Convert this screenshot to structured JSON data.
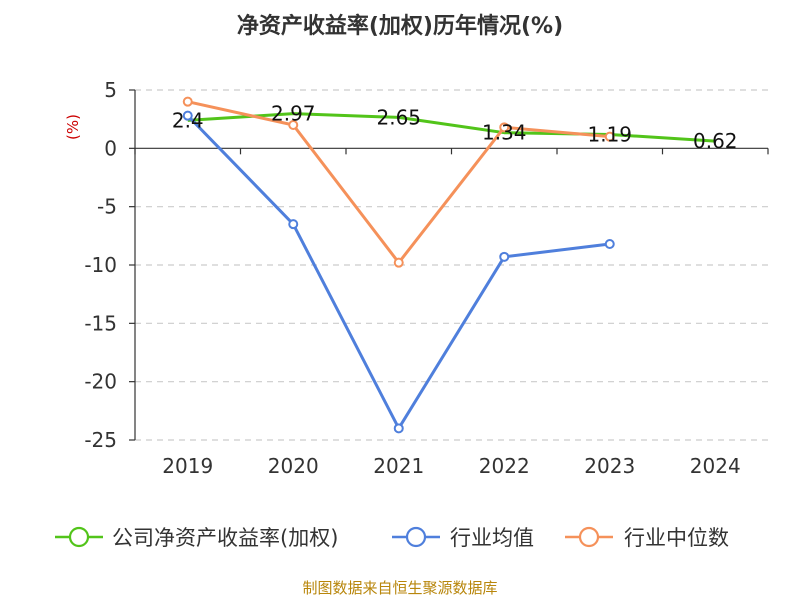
{
  "chart_data": {
    "type": "line",
    "title": "净资产收益率(加权)历年情况(%)",
    "ylabel": "(%)",
    "x": [
      "2019",
      "2020",
      "2021",
      "2022",
      "2023",
      "2024"
    ],
    "ylim": [
      -25,
      5
    ],
    "yticks": [
      5,
      0,
      -5,
      -10,
      -15,
      -20,
      -25
    ],
    "grid": true,
    "legend_position": "bottom",
    "series": [
      {
        "name": "公司净资产收益率(加权)",
        "color": "#52c41a",
        "values": [
          2.4,
          2.97,
          2.65,
          1.34,
          1.19,
          0.62
        ],
        "labels": [
          "2.4",
          "2.97",
          "2.65",
          "1.34",
          "1.19",
          "0.62"
        ]
      },
      {
        "name": "行业均值",
        "color": "#4f7fdc",
        "values": [
          2.8,
          -6.5,
          -24.0,
          -9.3,
          -8.2,
          null
        ]
      },
      {
        "name": "行业中位数",
        "color": "#f5915a",
        "values": [
          4.0,
          2.0,
          -9.8,
          1.8,
          1.0,
          null
        ]
      }
    ],
    "source": "制图数据来自恒生聚源数据库"
  }
}
